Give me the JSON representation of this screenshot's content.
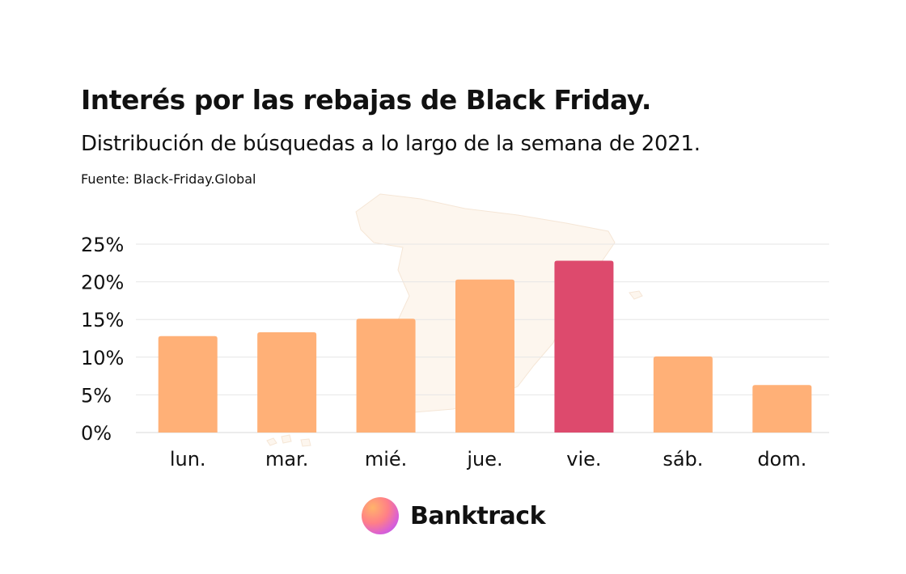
{
  "header": {
    "title": "Interés por las rebajas de Black Friday.",
    "subtitle": "Distribución de búsquedas a lo largo de la semana de 2021.",
    "source": "Fuente: Black-Friday.Global"
  },
  "brand": {
    "name": "Banktrack",
    "icon": "banktrack-logo-icon"
  },
  "colors": {
    "bar": "#ffb077",
    "highlight_bar": "#dd4a6d",
    "grid": "#e6e6e6",
    "map": "#fdf6ee"
  },
  "chart_data": {
    "type": "bar",
    "title": "Interés por las rebajas de Black Friday.",
    "subtitle": "Distribución de búsquedas a lo largo de la semana de 2021.",
    "categories": [
      "lun.",
      "mar.",
      "mié.",
      "jue.",
      "vie.",
      "sáb.",
      "dom."
    ],
    "values": [
      12.8,
      13.3,
      15.1,
      20.3,
      22.8,
      10.1,
      6.3
    ],
    "highlight": "vie.",
    "ylim": [
      0,
      25
    ],
    "yticks": [
      0,
      5,
      10,
      15,
      20,
      25
    ],
    "ytick_labels": [
      "0%",
      "5%",
      "10%",
      "15%",
      "20%",
      "25%"
    ],
    "xlabel": "",
    "ylabel": "",
    "grid": true,
    "legend": "none",
    "background_image": "spain-map-silhouette"
  }
}
